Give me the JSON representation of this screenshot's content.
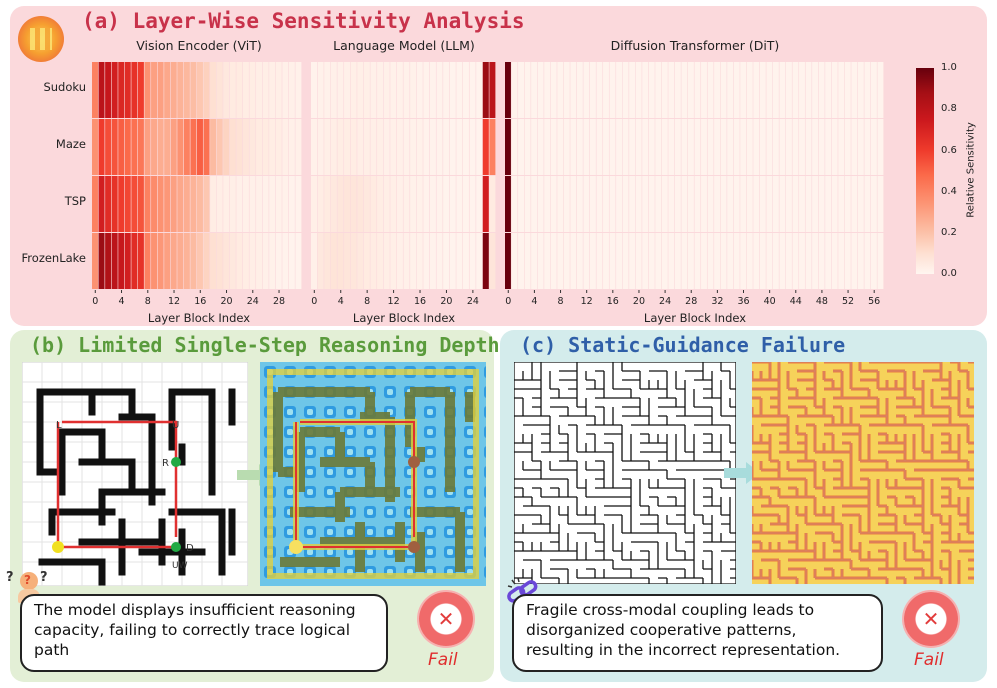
{
  "panel_a": {
    "title": "(a) Layer-Wise Sensitivity Analysis",
    "subtitles": {
      "vit": "Vision Encoder (ViT)",
      "llm": "Language Model (LLM)",
      "dit": "Diffusion Transformer (DiT)"
    },
    "row_labels": [
      "Sudoku",
      "Maze",
      "TSP",
      "FrozenLake"
    ],
    "xlabel": "Layer Block Index",
    "colorbar_label": "Relative Sensitivity",
    "colorbar_ticks": [
      "1.0",
      "0.8",
      "0.6",
      "0.4",
      "0.2",
      "0.0"
    ],
    "colors": {
      "high": "#67000d",
      "low": "#fff5f0"
    }
  },
  "chart_data": {
    "type": "heatmap",
    "title": "(a) Layer-Wise Sensitivity Analysis",
    "value_range": [
      0,
      1
    ],
    "rows": [
      "Sudoku",
      "Maze",
      "TSP",
      "FrozenLake"
    ],
    "panels": [
      {
        "name": "Vision Encoder (ViT)",
        "xlabel": "Layer Block Index",
        "xticks": [
          "0",
          "4",
          "8",
          "12",
          "16",
          "20",
          "24",
          "28"
        ],
        "values": [
          [
            0.55,
            0.9,
            0.88,
            0.85,
            0.82,
            0.8,
            0.78,
            0.75,
            0.5,
            0.45,
            0.45,
            0.42,
            0.4,
            0.38,
            0.36,
            0.34,
            0.3,
            0.26,
            0.2,
            0.16,
            0.12,
            0.1,
            0.1,
            0.08,
            0.08,
            0.07,
            0.07,
            0.06,
            0.06,
            0.05,
            0.05,
            0.04
          ],
          [
            0.5,
            0.75,
            0.7,
            0.68,
            0.65,
            0.62,
            0.6,
            0.58,
            0.45,
            0.42,
            0.4,
            0.4,
            0.45,
            0.5,
            0.55,
            0.6,
            0.65,
            0.6,
            0.35,
            0.3,
            0.25,
            0.2,
            0.18,
            0.15,
            0.12,
            0.1,
            0.1,
            0.08,
            0.08,
            0.06,
            0.05,
            0.05
          ],
          [
            0.55,
            0.85,
            0.8,
            0.78,
            0.75,
            0.72,
            0.7,
            0.68,
            0.55,
            0.52,
            0.5,
            0.48,
            0.45,
            0.42,
            0.4,
            0.38,
            0.35,
            0.3,
            0.08,
            0.07,
            0.06,
            0.06,
            0.05,
            0.05,
            0.05,
            0.05,
            0.04,
            0.04,
            0.04,
            0.04,
            0.03,
            0.03
          ],
          [
            0.5,
            0.95,
            0.92,
            0.9,
            0.88,
            0.85,
            0.8,
            0.78,
            0.55,
            0.5,
            0.48,
            0.45,
            0.42,
            0.4,
            0.38,
            0.35,
            0.3,
            0.25,
            0.2,
            0.18,
            0.15,
            0.12,
            0.1,
            0.08,
            0.07,
            0.06,
            0.05,
            0.04,
            0.03,
            0.03,
            0.02,
            0.02
          ]
        ]
      },
      {
        "name": "Language Model (LLM)",
        "xlabel": "Layer Block Index",
        "xticks": [
          "0",
          "4",
          "8",
          "12",
          "16",
          "20",
          "24"
        ],
        "values": [
          [
            0.03,
            0.04,
            0.04,
            0.05,
            0.05,
            0.05,
            0.06,
            0.06,
            0.06,
            0.05,
            0.05,
            0.05,
            0.04,
            0.04,
            0.04,
            0.04,
            0.03,
            0.03,
            0.03,
            0.03,
            0.03,
            0.02,
            0.02,
            0.02,
            0.02,
            0.02,
            0.95,
            0.9
          ],
          [
            0.04,
            0.05,
            0.06,
            0.07,
            0.08,
            0.08,
            0.08,
            0.07,
            0.07,
            0.06,
            0.06,
            0.05,
            0.05,
            0.05,
            0.04,
            0.04,
            0.04,
            0.03,
            0.03,
            0.03,
            0.03,
            0.02,
            0.02,
            0.02,
            0.02,
            0.02,
            0.75,
            0.55
          ],
          [
            0.06,
            0.08,
            0.1,
            0.12,
            0.14,
            0.15,
            0.15,
            0.14,
            0.12,
            0.1,
            0.08,
            0.07,
            0.06,
            0.05,
            0.05,
            0.04,
            0.04,
            0.03,
            0.03,
            0.03,
            0.02,
            0.02,
            0.02,
            0.02,
            0.02,
            0.02,
            0.85,
            0.1
          ],
          [
            0.05,
            0.12,
            0.14,
            0.16,
            0.16,
            0.15,
            0.14,
            0.12,
            0.1,
            0.09,
            0.08,
            0.07,
            0.06,
            0.05,
            0.05,
            0.04,
            0.04,
            0.03,
            0.03,
            0.03,
            0.02,
            0.02,
            0.02,
            0.02,
            0.02,
            0.02,
            0.98,
            0.15
          ]
        ]
      },
      {
        "name": "Diffusion Transformer (DiT)",
        "xlabel": "Layer Block Index",
        "xticks": [
          "0",
          "4",
          "8",
          "12",
          "16",
          "20",
          "24",
          "28",
          "32",
          "36",
          "40",
          "44",
          "48",
          "52",
          "56"
        ],
        "values": [
          [
            1.0,
            0.03,
            0.02,
            0.02,
            0.02,
            0.02,
            0.02,
            0.02,
            0.02,
            0.02,
            0.02,
            0.02,
            0.02,
            0.02,
            0.02,
            0.02,
            0.02,
            0.02,
            0.02,
            0.02,
            0.02,
            0.02,
            0.02,
            0.02,
            0.02,
            0.02,
            0.02,
            0.02,
            0.02,
            0.02,
            0.02,
            0.02,
            0.02,
            0.02,
            0.02,
            0.02,
            0.02,
            0.02,
            0.02,
            0.02,
            0.02,
            0.02,
            0.02,
            0.02,
            0.02,
            0.02,
            0.02,
            0.02,
            0.02,
            0.02,
            0.02,
            0.02,
            0.02,
            0.02,
            0.02,
            0.02,
            0.02,
            0.02
          ],
          [
            1.0,
            0.02,
            0.02,
            0.02,
            0.02,
            0.02,
            0.02,
            0.02,
            0.02,
            0.02,
            0.02,
            0.02,
            0.02,
            0.02,
            0.02,
            0.02,
            0.02,
            0.02,
            0.02,
            0.02,
            0.02,
            0.02,
            0.02,
            0.02,
            0.02,
            0.02,
            0.02,
            0.02,
            0.02,
            0.02,
            0.02,
            0.02,
            0.02,
            0.02,
            0.02,
            0.02,
            0.02,
            0.02,
            0.02,
            0.02,
            0.02,
            0.02,
            0.02,
            0.02,
            0.02,
            0.02,
            0.02,
            0.02,
            0.02,
            0.02,
            0.02,
            0.02,
            0.02,
            0.02,
            0.02,
            0.02,
            0.02,
            0.02
          ],
          [
            1.0,
            0.02,
            0.02,
            0.02,
            0.02,
            0.02,
            0.02,
            0.02,
            0.02,
            0.02,
            0.02,
            0.02,
            0.02,
            0.02,
            0.02,
            0.02,
            0.02,
            0.02,
            0.02,
            0.02,
            0.02,
            0.02,
            0.02,
            0.02,
            0.02,
            0.02,
            0.02,
            0.02,
            0.02,
            0.02,
            0.02,
            0.02,
            0.02,
            0.02,
            0.02,
            0.02,
            0.02,
            0.02,
            0.02,
            0.02,
            0.02,
            0.02,
            0.02,
            0.02,
            0.02,
            0.02,
            0.02,
            0.02,
            0.02,
            0.02,
            0.02,
            0.02,
            0.02,
            0.02,
            0.02,
            0.02,
            0.02,
            0.02
          ],
          [
            1.0,
            0.02,
            0.02,
            0.02,
            0.02,
            0.02,
            0.02,
            0.02,
            0.02,
            0.02,
            0.02,
            0.02,
            0.02,
            0.02,
            0.02,
            0.02,
            0.02,
            0.02,
            0.02,
            0.02,
            0.02,
            0.02,
            0.02,
            0.02,
            0.02,
            0.02,
            0.02,
            0.02,
            0.02,
            0.02,
            0.02,
            0.02,
            0.02,
            0.02,
            0.02,
            0.02,
            0.02,
            0.02,
            0.02,
            0.02,
            0.02,
            0.02,
            0.02,
            0.02,
            0.02,
            0.02,
            0.02,
            0.02,
            0.02,
            0.02,
            0.02,
            0.02,
            0.02,
            0.02,
            0.02,
            0.02,
            0.02,
            0.02
          ]
        ]
      }
    ]
  },
  "panel_b": {
    "title": "(b) Limited Single-Step Reasoning Depth",
    "maze_labels": {
      "l": "L",
      "u": "U",
      "r": "R",
      "d": "D",
      "uw": "UW"
    },
    "caption": "The model displays insufficient reasoning capacity, failing to correctly trace logical path",
    "fail_label": "Fail",
    "icon": "confused-person-icon"
  },
  "panel_c": {
    "title": "(c) Static-Guidance Failure",
    "caption": "Fragile cross-modal coupling leads to disorganized cooperative patterns, resulting in the incorrect representation.",
    "fail_label": "Fail",
    "icon": "broken-link-icon"
  }
}
